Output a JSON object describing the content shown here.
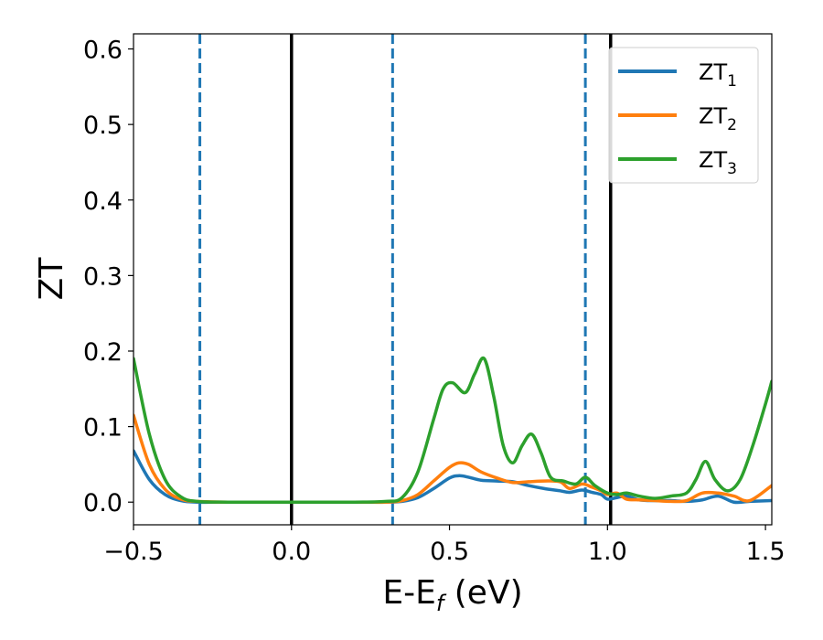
{
  "chart_data": {
    "type": "line",
    "xlabel": {
      "main": "E-E",
      "sub": "f",
      "unit": " (eV)"
    },
    "ylabel": "ZT",
    "xlim": [
      -0.5,
      1.52
    ],
    "ylim": [
      -0.03,
      0.62
    ],
    "x_ticks": [
      {
        "value": -0.5,
        "label": "−0.5"
      },
      {
        "value": 0.0,
        "label": "0.0"
      },
      {
        "value": 0.5,
        "label": "0.5"
      },
      {
        "value": 1.0,
        "label": "1.0"
      },
      {
        "value": 1.5,
        "label": "1.5"
      }
    ],
    "y_ticks": [
      {
        "value": 0.0,
        "label": "0.0"
      },
      {
        "value": 0.1,
        "label": "0.1"
      },
      {
        "value": 0.2,
        "label": "0.2"
      },
      {
        "value": 0.3,
        "label": "0.3"
      },
      {
        "value": 0.4,
        "label": "0.4"
      },
      {
        "value": 0.5,
        "label": "0.5"
      },
      {
        "value": 0.6,
        "label": "0.6"
      }
    ],
    "grid": false,
    "legend_position": "top-right",
    "vertical_lines": [
      {
        "x": -0.29,
        "style": "dashed",
        "color": "#1f77b4"
      },
      {
        "x": 0.0,
        "style": "solid",
        "color": "#000000"
      },
      {
        "x": 0.32,
        "style": "dashed",
        "color": "#1f77b4"
      },
      {
        "x": 0.93,
        "style": "dashed",
        "color": "#1f77b4"
      },
      {
        "x": 1.01,
        "style": "solid",
        "color": "#000000"
      }
    ],
    "series": [
      {
        "name": "ZT",
        "subscript": "1",
        "color": "#1f77b4",
        "x": [
          -0.5,
          -0.45,
          -0.4,
          -0.35,
          -0.3,
          -0.2,
          0.0,
          0.2,
          0.3,
          0.35,
          0.4,
          0.45,
          0.5,
          0.53,
          0.56,
          0.6,
          0.65,
          0.7,
          0.75,
          0.8,
          0.85,
          0.88,
          0.92,
          0.95,
          0.98,
          1.0,
          1.03,
          1.06,
          1.1,
          1.15,
          1.2,
          1.25,
          1.3,
          1.35,
          1.4,
          1.45,
          1.52
        ],
        "y": [
          0.068,
          0.03,
          0.01,
          0.002,
          0.0,
          0.0,
          0.0,
          0.0,
          0.0,
          0.001,
          0.006,
          0.018,
          0.032,
          0.035,
          0.033,
          0.029,
          0.028,
          0.027,
          0.022,
          0.018,
          0.015,
          0.013,
          0.016,
          0.013,
          0.01,
          0.004,
          0.006,
          0.008,
          0.003,
          0.002,
          0.002,
          0.001,
          0.003,
          0.008,
          0.0,
          0.001,
          0.002
        ]
      },
      {
        "name": "ZT",
        "subscript": "2",
        "color": "#ff7f0e",
        "x": [
          -0.5,
          -0.45,
          -0.4,
          -0.35,
          -0.3,
          -0.2,
          0.0,
          0.2,
          0.3,
          0.35,
          0.4,
          0.45,
          0.5,
          0.53,
          0.56,
          0.6,
          0.65,
          0.7,
          0.75,
          0.8,
          0.85,
          0.88,
          0.92,
          0.95,
          0.98,
          1.0,
          1.03,
          1.06,
          1.1,
          1.15,
          1.2,
          1.25,
          1.3,
          1.35,
          1.4,
          1.45,
          1.52
        ],
        "y": [
          0.115,
          0.05,
          0.017,
          0.004,
          0.001,
          0.0,
          0.0,
          0.0,
          0.0,
          0.002,
          0.01,
          0.028,
          0.046,
          0.052,
          0.05,
          0.04,
          0.032,
          0.026,
          0.027,
          0.028,
          0.027,
          0.018,
          0.024,
          0.02,
          0.015,
          0.01,
          0.012,
          0.004,
          0.003,
          0.002,
          0.001,
          0.002,
          0.012,
          0.012,
          0.008,
          0.002,
          0.022
        ]
      },
      {
        "name": "ZT",
        "subscript": "3",
        "color": "#2ca02c",
        "x": [
          -0.5,
          -0.45,
          -0.4,
          -0.35,
          -0.3,
          -0.2,
          0.0,
          0.2,
          0.3,
          0.35,
          0.4,
          0.45,
          0.48,
          0.51,
          0.55,
          0.58,
          0.61,
          0.64,
          0.67,
          0.7,
          0.73,
          0.76,
          0.79,
          0.82,
          0.86,
          0.9,
          0.93,
          0.96,
          1.0,
          1.03,
          1.06,
          1.1,
          1.15,
          1.2,
          1.25,
          1.28,
          1.31,
          1.34,
          1.38,
          1.42,
          1.46,
          1.5,
          1.52
        ],
        "y": [
          0.19,
          0.09,
          0.03,
          0.007,
          0.001,
          0.0,
          0.0,
          0.0,
          0.001,
          0.006,
          0.04,
          0.11,
          0.15,
          0.158,
          0.145,
          0.17,
          0.19,
          0.14,
          0.075,
          0.052,
          0.075,
          0.09,
          0.065,
          0.033,
          0.028,
          0.024,
          0.033,
          0.022,
          0.012,
          0.01,
          0.012,
          0.008,
          0.005,
          0.008,
          0.012,
          0.03,
          0.054,
          0.03,
          0.015,
          0.03,
          0.075,
          0.13,
          0.16
        ]
      }
    ]
  }
}
